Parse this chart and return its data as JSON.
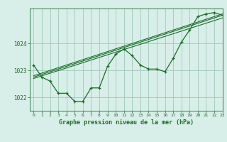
{
  "title": "Graphe pression niveau de la mer (hPa)",
  "background_color": "#d8eee8",
  "grid_color": "#a0c8b8",
  "line_color": "#1a6b2a",
  "xlim": [
    -0.5,
    23
  ],
  "ylim": [
    1021.5,
    1025.3
  ],
  "yticks": [
    1022,
    1023,
    1024
  ],
  "xticks": [
    0,
    1,
    2,
    3,
    4,
    5,
    6,
    7,
    8,
    9,
    10,
    11,
    12,
    13,
    14,
    15,
    16,
    17,
    18,
    19,
    20,
    21,
    22,
    23
  ],
  "main_data": [
    [
      0,
      1023.2
    ],
    [
      1,
      1022.75
    ],
    [
      2,
      1022.6
    ],
    [
      3,
      1022.15
    ],
    [
      4,
      1022.15
    ],
    [
      5,
      1021.85
    ],
    [
      6,
      1021.85
    ],
    [
      7,
      1022.35
    ],
    [
      8,
      1022.35
    ],
    [
      9,
      1023.15
    ],
    [
      10,
      1023.6
    ],
    [
      11,
      1023.8
    ],
    [
      12,
      1023.55
    ],
    [
      13,
      1023.2
    ],
    [
      14,
      1023.05
    ],
    [
      15,
      1023.05
    ],
    [
      16,
      1022.95
    ],
    [
      17,
      1023.45
    ],
    [
      18,
      1024.05
    ],
    [
      19,
      1024.5
    ],
    [
      20,
      1025.0
    ],
    [
      21,
      1025.1
    ],
    [
      22,
      1025.15
    ],
    [
      23,
      1025.05
    ]
  ],
  "trend_line1": [
    [
      0,
      1022.8
    ],
    [
      23,
      1025.1
    ]
  ],
  "trend_line2": [
    [
      0,
      1022.75
    ],
    [
      23,
      1025.05
    ]
  ],
  "trend_line3": [
    [
      0,
      1022.7
    ],
    [
      23,
      1024.95
    ]
  ]
}
